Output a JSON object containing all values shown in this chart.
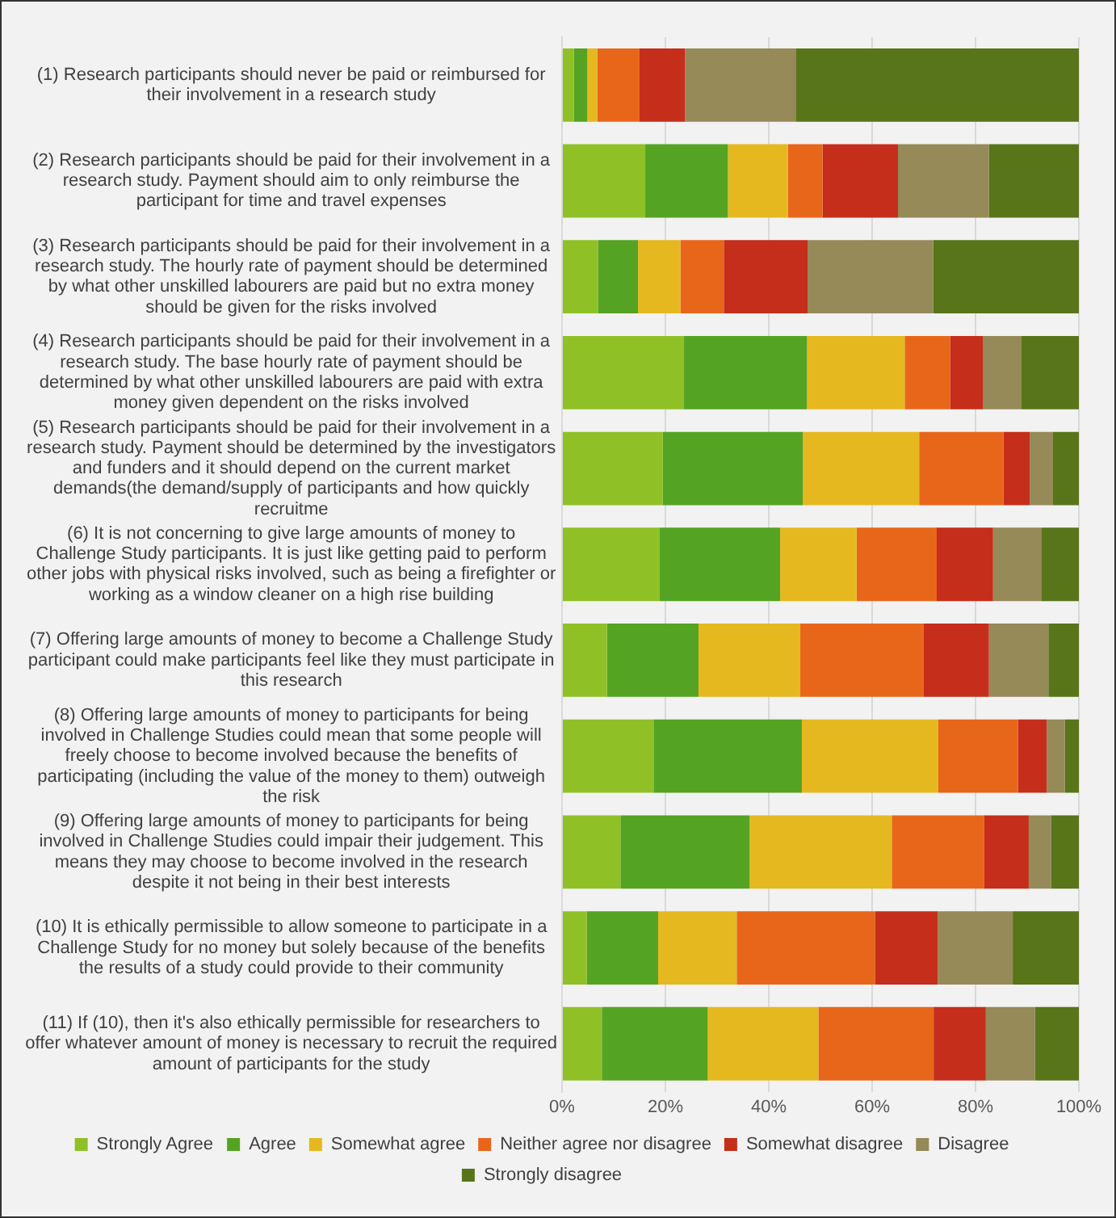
{
  "chart_data": {
    "type": "bar",
    "orientation": "horizontal",
    "stacked": true,
    "grid": "x",
    "legend": "bottom",
    "categories": [
      "(1) Research participants should never be paid or reimbursed for their involvement in a research study",
      "(2) Research participants should be paid for their involvement in a research study. Payment should aim to only reimburse the participant for time and travel expenses",
      "(3) Research participants should be paid for their involvement in a research study. The hourly rate of payment should be determined by what other unskilled labourers are paid but no extra money should be given for the risks involved",
      "(4) Research participants should be paid for their involvement in a research study. The base hourly rate of payment should be determined by what other unskilled labourers are paid with extra money given dependent on the risks involved",
      "(5) Research participants should be paid for their involvement in a research study. Payment should be determined by the investigators and funders and it should depend on the current market demands(the demand/supply of participants and how quickly recruitme",
      "(6) It is not concerning to give large amounts of money to Challenge Study participants. It is just like getting paid to perform other jobs with physical risks involved, such as being a firefighter or working as a window cleaner on a high rise building",
      "(7) Offering large amounts of money to become a Challenge Study participant could make participants feel like they must participate in this research",
      "(8) Offering large amounts of money to participants for being involved in Challenge Studies could mean that some people will freely choose to become involved because the benefits of participating (including the value of the money to them) outweigh the risk",
      "(9) Offering large amounts of money to participants for being involved in Challenge Studies could impair their judgement. This means they may choose to become involved in the research despite it not being in their best interests",
      "(10) It is ethically permissible to allow someone to participate in a Challenge Study for no money but solely because of the benefits the results of a study could provide to their community",
      "(11) If (10), then it's also ethically permissible for researchers to offer whatever amount of money is necessary to recruit the required amount of participants for the study"
    ],
    "xlim": [
      0,
      100
    ],
    "xticks": [
      {
        "value": 0,
        "label": "0%"
      },
      {
        "value": 20,
        "label": "20%"
      },
      {
        "value": 40,
        "label": "40%"
      },
      {
        "value": 60,
        "label": "60%"
      },
      {
        "value": 80,
        "label": "80%"
      },
      {
        "value": 100,
        "label": "100%"
      }
    ],
    "series": [
      {
        "name": "Strongly Agree",
        "color": "#8fc127",
        "values": [
          2.3,
          16.1,
          7.0,
          23.6,
          19.5,
          18.9,
          8.7,
          17.7,
          11.3,
          4.8,
          7.7
        ]
      },
      {
        "name": "Agree",
        "color": "#55a322",
        "values": [
          2.6,
          16.0,
          7.7,
          23.8,
          27.1,
          23.3,
          17.7,
          28.7,
          25.0,
          13.8,
          20.5
        ]
      },
      {
        "name": "Somewhat agree",
        "color": "#e6b820",
        "values": [
          1.9,
          11.6,
          8.2,
          18.9,
          22.5,
          14.8,
          19.7,
          26.4,
          27.5,
          15.2,
          21.4
        ]
      },
      {
        "name": "Neither agree nor disagree",
        "color": "#e8661a",
        "values": [
          8.2,
          6.7,
          8.4,
          8.8,
          16.3,
          15.5,
          23.8,
          15.4,
          17.9,
          26.8,
          22.3
        ]
      },
      {
        "name": "Somewhat disagree",
        "color": "#c52e1a",
        "values": [
          8.8,
          14.6,
          16.2,
          6.4,
          5.1,
          10.9,
          12.7,
          5.6,
          8.6,
          12.1,
          10.1
        ]
      },
      {
        "name": "Disagree",
        "color": "#958a58",
        "values": [
          21.4,
          17.6,
          24.3,
          7.3,
          4.5,
          9.3,
          11.5,
          3.5,
          4.3,
          14.5,
          9.5
        ]
      },
      {
        "name": "Strongly disagree",
        "color": "#587519",
        "values": [
          54.8,
          17.4,
          28.2,
          11.2,
          5.0,
          7.3,
          5.9,
          2.7,
          5.4,
          12.8,
          8.5
        ]
      }
    ]
  }
}
